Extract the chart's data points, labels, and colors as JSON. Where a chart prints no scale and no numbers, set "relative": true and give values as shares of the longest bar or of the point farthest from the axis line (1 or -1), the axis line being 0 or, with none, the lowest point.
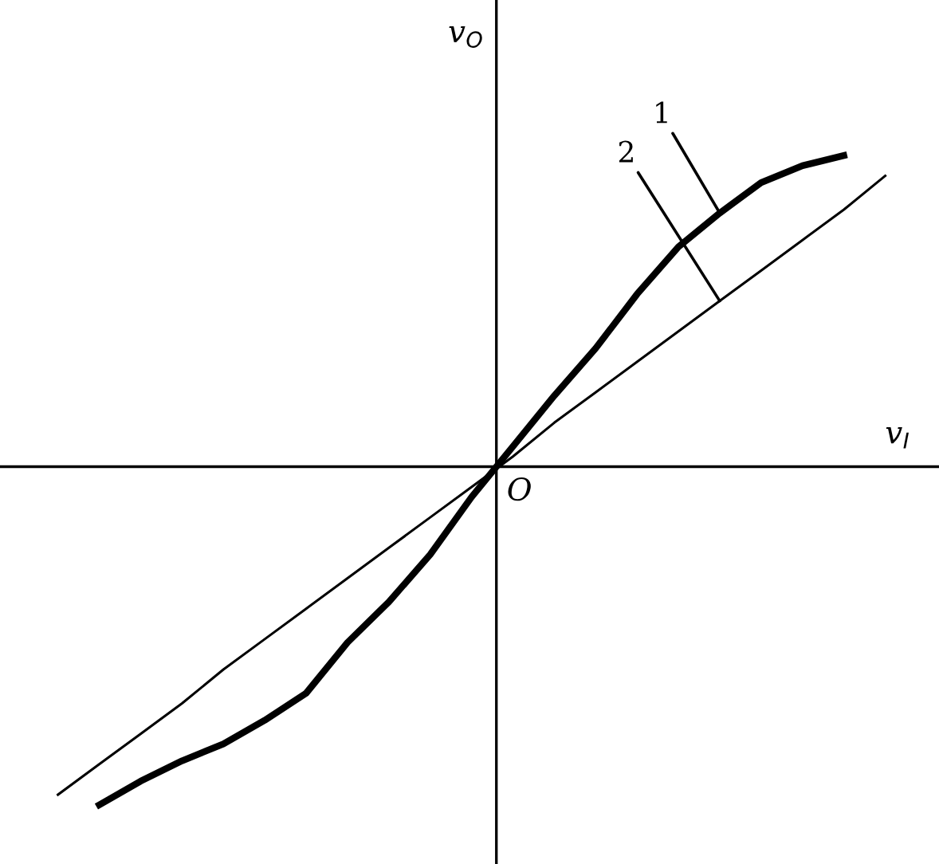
{
  "chart_data": {
    "type": "line",
    "relative": true,
    "xlabel": "v$_{I}$",
    "ylabel": "v$_{O}$",
    "categories": [
      null,
      null,
      null,
      null,
      null,
      null,
      null,
      null,
      null,
      null,
      null,
      null,
      null,
      null,
      null,
      null,
      null,
      null,
      null,
      null,
      null
    ],
    "series": [
      {
        "name": "1",
        "color": "#000000",
        "values": [
          null,
          -1,
          -0.93,
          -0.87,
          -0.82,
          -0.75,
          -0.67,
          -0.52,
          -0.4,
          -0.26,
          -0.09,
          0.06,
          0.21,
          0.35,
          0.51,
          0.65,
          0.75,
          0.84,
          0.89,
          0.92,
          null
        ]
      },
      {
        "name": "2",
        "color": "#000000",
        "values": [
          -0.97,
          -0.88,
          -0.79,
          -0.7,
          -0.6,
          -0.51,
          -0.42,
          -0.33,
          -0.24,
          -0.15,
          -0.06,
          0.03,
          0.13,
          0.22,
          0.31,
          0.4,
          0.49,
          0.58,
          0.67,
          0.76,
          0.86
        ]
      }
    ],
    "annotations": [
      "O"
    ]
  }
}
